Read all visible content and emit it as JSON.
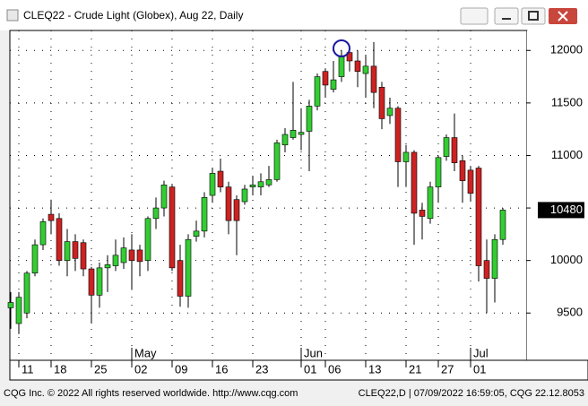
{
  "chart_data": {
    "type": "candlestick",
    "title": "CLEQ22 - Crude Light (Globex), Aug 22, Daily",
    "footer_left": "CQG Inc. © 2022 All rights reserved worldwide. http://www.cqg.com",
    "footer_right": "CLEQ22,D | 07/09/2022 16:59:05, CQG 22.12.8053",
    "up_color": "#33cc33",
    "down_color": "#cc2222",
    "categories": [
      null,
      "11",
      null,
      null,
      null,
      "18",
      null,
      null,
      null,
      null,
      "25",
      null,
      null,
      null,
      null,
      "02",
      null,
      null,
      null,
      null,
      "09",
      null,
      null,
      null,
      null,
      "16",
      null,
      null,
      null,
      null,
      "23",
      null,
      null,
      null,
      null,
      null,
      "01",
      null,
      null,
      "06",
      null,
      null,
      null,
      null,
      "13",
      null,
      null,
      null,
      null,
      "21",
      null,
      null,
      null,
      "27",
      null,
      null,
      null,
      "01",
      null,
      null,
      null,
      null
    ],
    "months": [
      null,
      null,
      null,
      null,
      null,
      null,
      null,
      null,
      null,
      null,
      null,
      null,
      null,
      null,
      null,
      "May",
      null,
      null,
      null,
      null,
      null,
      null,
      null,
      null,
      null,
      null,
      null,
      null,
      null,
      null,
      null,
      null,
      null,
      null,
      null,
      null,
      "Jun",
      null,
      null,
      null,
      null,
      null,
      null,
      null,
      null,
      null,
      null,
      null,
      null,
      null,
      null,
      null,
      null,
      null,
      null,
      null,
      null,
      "Jul",
      null,
      null,
      null,
      null
    ],
    "open": [
      9550,
      9400,
      9500,
      9880,
      10150,
      10440,
      10400,
      10000,
      10180,
      10170,
      9920,
      9670,
      9930,
      9950,
      9980,
      10100,
      10100,
      10000,
      10400,
      10500,
      10700,
      10000,
      9660,
      10230,
      10280,
      10620,
      10850,
      10700,
      10580,
      10560,
      10700,
      10700,
      10720,
      10770,
      11100,
      11170,
      11200,
      11230,
      11470,
      11800,
      11630,
      11750,
      11980,
      11900,
      11780,
      11850,
      11650,
      11380,
      11450,
      10940,
      11030,
      10480,
      10400,
      10700,
      10990,
      11170,
      10950,
      10860,
      10880,
      10000,
      9830,
      10200
    ],
    "high": [
      9700,
      9700,
      9900,
      10200,
      10400,
      10580,
      10450,
      10300,
      10250,
      10200,
      9940,
      9980,
      10050,
      10200,
      10220,
      10250,
      10150,
      10420,
      10600,
      10760,
      10720,
      10150,
      10250,
      10380,
      10650,
      10880,
      10970,
      10750,
      10620,
      10720,
      10800,
      10830,
      10900,
      11150,
      11260,
      11700,
      11450,
      11530,
      11780,
      11830,
      11900,
      12000,
      12000,
      12000,
      11950,
      12080,
      11700,
      11550,
      11470,
      11100,
      11050,
      10550,
      10750,
      11000,
      11200,
      11400,
      11000,
      10900,
      10900,
      10200,
      10250,
      10500
    ],
    "low": [
      9350,
      9300,
      9450,
      9850,
      10100,
      10250,
      9950,
      9850,
      9900,
      9850,
      9400,
      9550,
      9700,
      9900,
      9920,
      9720,
      9850,
      9900,
      10300,
      10420,
      9900,
      9560,
      9550,
      10180,
      10220,
      10550,
      10650,
      10250,
      10050,
      10530,
      10620,
      10620,
      10700,
      10750,
      11030,
      11150,
      11050,
      10850,
      11430,
      11550,
      11600,
      11700,
      11800,
      11650,
      11550,
      11450,
      11250,
      11300,
      10700,
      10700,
      10150,
      10200,
      10350,
      10550,
      10950,
      10850,
      10550,
      10560,
      9800,
      9500,
      9600,
      10150
    ],
    "close": [
      9600,
      9650,
      9880,
      10150,
      10370,
      10380,
      10000,
      10180,
      10020,
      9920,
      9670,
      9930,
      9960,
      10050,
      10120,
      10000,
      9990,
      10400,
      10500,
      10720,
      9930,
      9660,
      10200,
      10280,
      10600,
      10830,
      10700,
      10380,
      10380,
      10680,
      10720,
      10750,
      10770,
      11120,
      11200,
      11240,
      11220,
      11470,
      11750,
      11670,
      11720,
      11950,
      11900,
      11800,
      11850,
      11600,
      11350,
      11450,
      10940,
      11030,
      10450,
      10420,
      10700,
      10980,
      11170,
      10930,
      10760,
      10640,
      9950,
      9830,
      10200,
      10480
    ],
    "ylim": [
      9050,
      12190
    ],
    "yticks": [
      9500,
      10000,
      10500,
      11000,
      11500,
      12000
    ],
    "grid": true
  }
}
